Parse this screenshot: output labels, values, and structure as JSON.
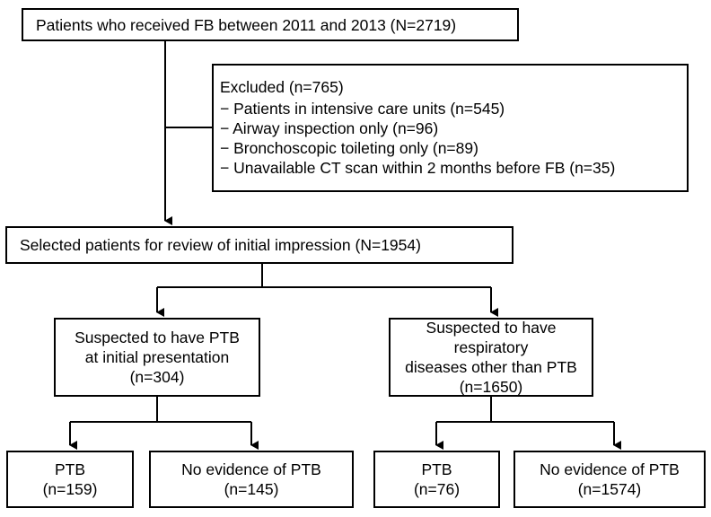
{
  "nodes": {
    "total": "Patients who received FB between 2011 and 2013 (N=2719)",
    "excluded": {
      "title": "Excluded (n=765)",
      "items": [
        "− Patients in intensive care units (n=545)",
        "− Airway inspection only (n=96)",
        "− Bronchoscopic toileting only (n=89)",
        "− Unavailable CT scan within 2 months before FB (n=35)"
      ]
    },
    "selected": "Selected patients for review of initial impression (N=1954)",
    "suspected_ptb": [
      "Suspected to have PTB",
      "at initial presentation",
      "(n=304)"
    ],
    "suspected_other": [
      "Suspected to have respiratory",
      "diseases other than PTB",
      "(n=1650)"
    ],
    "ptb_1": [
      "PTB",
      "(n=159)"
    ],
    "no_ptb_1": [
      "No evidence of PTB",
      "(n=145)"
    ],
    "ptb_2": [
      "PTB",
      "(n=76)"
    ],
    "no_ptb_2": [
      "No evidence of PTB",
      "(n=1574)"
    ]
  }
}
